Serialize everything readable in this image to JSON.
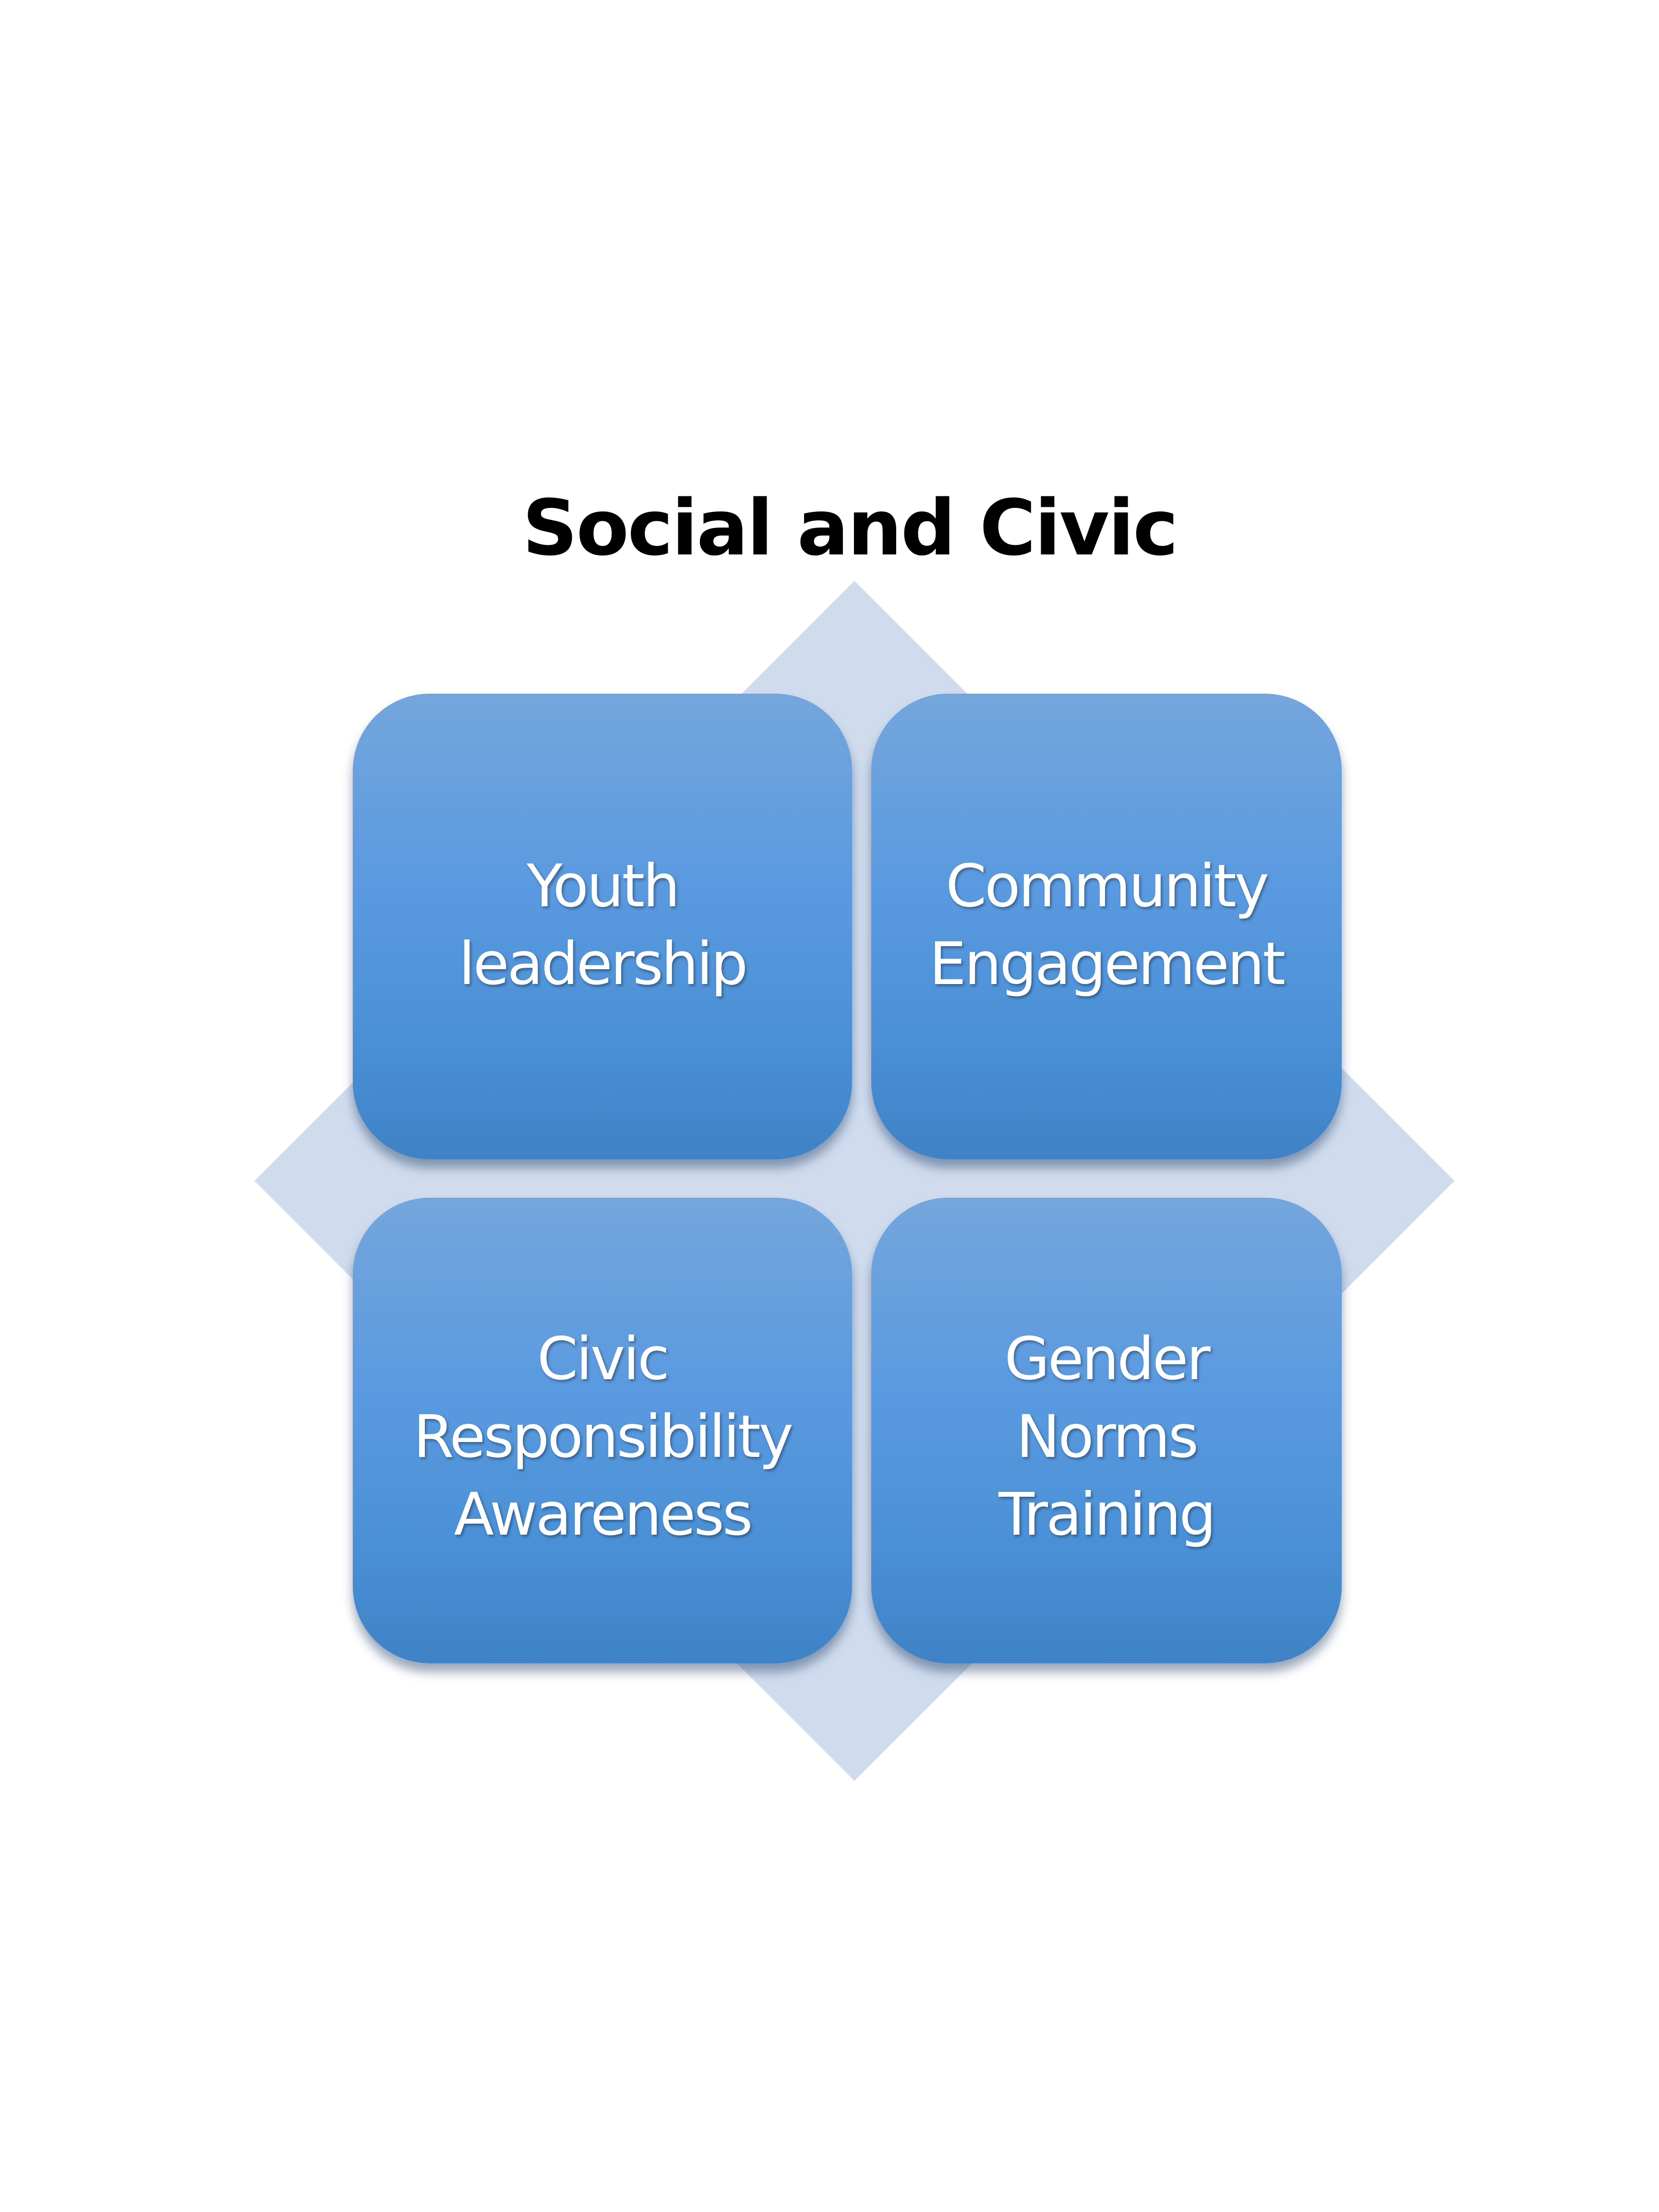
{
  "title": "Social and Civic",
  "colors": {
    "tile_top": "#74a6dc",
    "tile_bottom": "#3f82c6",
    "diamond": "#d0dcee",
    "label": "#ffffff",
    "title": "#000000"
  },
  "tiles": [
    {
      "label": "Youth\nleadership"
    },
    {
      "label": "Community\nEngagement"
    },
    {
      "label": "Civic\nResponsibility\nAwareness"
    },
    {
      "label": "Gender\nNorms\nTraining"
    }
  ]
}
